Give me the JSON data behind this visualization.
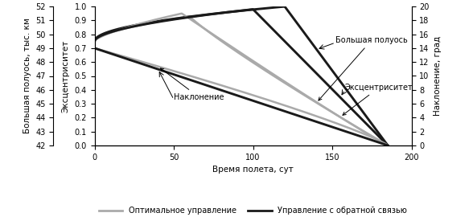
{
  "xlabel": "Время полета, сут",
  "ylabel_left_ecc": "Эксцентриситет",
  "ylabel_left_sma": "Большая полуось, тыс. км",
  "ylabel_right": "Наклонение, град",
  "xlim": [
    0,
    200
  ],
  "ylim_ecc": [
    0.0,
    1.0
  ],
  "ylim_sma": [
    42,
    52
  ],
  "ylim_inc": [
    0,
    20
  ],
  "xticks": [
    0,
    50,
    100,
    150,
    200
  ],
  "yticks_ecc": [
    0,
    0.1,
    0.2,
    0.3,
    0.4,
    0.5,
    0.6,
    0.7,
    0.8,
    0.9,
    1.0
  ],
  "yticks_sma": [
    42,
    43,
    44,
    45,
    46,
    47,
    48,
    49,
    50,
    51,
    52
  ],
  "yticks_inc": [
    0,
    2,
    4,
    6,
    8,
    10,
    12,
    14,
    16,
    18,
    20
  ],
  "color_optimal": "#aaaaaa",
  "color_feedback": "#1a1a1a",
  "legend_optimal": "Оптимальное управление",
  "legend_feedback": "Управление с обратной связью",
  "ann_big_axis": "Большая полуось",
  "ann_ecc": "Эксцентриситет",
  "ann_inc": "Наклонение",
  "figsize": [
    5.88,
    2.7
  ],
  "dpi": 100
}
